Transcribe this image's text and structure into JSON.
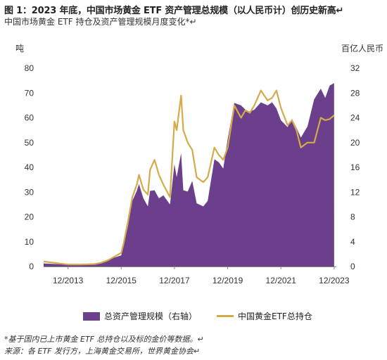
{
  "title": "图 1：2023 年底，中国市场黄金 ETF 资产管理总规模（以人民币计）创历史新高↵",
  "subtitle": "中国市场黄金 ETF 持仓及资产管理规模月度变化*↵",
  "footnote1": "*基于国内已上市黄金 ETF 总持仓以及标的金价等数据。↵",
  "footnote2": "来源：各 ETF 发行方，上海黄金交易所，世界黄金协会↵",
  "colors": {
    "area": "#6b3f8c",
    "line": "#d4aa4a",
    "axis": "#888888",
    "text": "#333333"
  },
  "chart_data": {
    "type": "area+line",
    "left_axis_unit": "吨",
    "right_axis_unit": "百亿人民币",
    "left_ylim": [
      0,
      80
    ],
    "right_ylim": [
      0,
      32
    ],
    "left_ticks": [
      "0",
      "10",
      "20",
      "30",
      "40",
      "50",
      "60",
      "70",
      "80"
    ],
    "right_ticks": [
      "0",
      "4",
      "8",
      "12",
      "16",
      "20",
      "24",
      "28",
      "32"
    ],
    "x_tick_labels": [
      "12/2013",
      "12/2015",
      "12/2017",
      "12/2019",
      "12/2021",
      "12/2023"
    ],
    "x_tick_dates": [
      "2013-12",
      "2015-12",
      "2017-12",
      "2019-12",
      "2021-12",
      "2023-12"
    ],
    "grid": false,
    "legend_position": "bottom",
    "series": [
      {
        "name": "总资产管理规模（右轴）",
        "axis": "right",
        "style": "area",
        "points": [
          [
            "2013-01",
            0.5
          ],
          [
            "2013-12",
            0.3
          ],
          [
            "2014-06",
            0.3
          ],
          [
            "2014-12",
            0.5
          ],
          [
            "2015-03",
            0.7
          ],
          [
            "2015-06",
            1.1
          ],
          [
            "2015-12",
            1.8
          ],
          [
            "2016-01",
            3.4
          ],
          [
            "2016-03",
            6.5
          ],
          [
            "2016-05",
            10.6
          ],
          [
            "2016-07",
            12.2
          ],
          [
            "2016-08",
            13.3
          ],
          [
            "2016-10",
            11.0
          ],
          [
            "2016-12",
            9.7
          ],
          [
            "2017-01",
            12.2
          ],
          [
            "2017-03",
            12.3
          ],
          [
            "2017-05",
            11.0
          ],
          [
            "2017-07",
            11.5
          ],
          [
            "2017-10",
            10.0
          ],
          [
            "2017-12",
            16.5
          ],
          [
            "2018-01",
            14.4
          ],
          [
            "2018-03",
            18.3
          ],
          [
            "2018-04",
            12.3
          ],
          [
            "2018-06",
            12.1
          ],
          [
            "2018-08",
            13.8
          ],
          [
            "2018-10",
            10.2
          ],
          [
            "2019-01",
            9.7
          ],
          [
            "2019-03",
            10.6
          ],
          [
            "2019-06",
            17.3
          ],
          [
            "2019-08",
            16.8
          ],
          [
            "2019-10",
            15.8
          ],
          [
            "2019-12",
            20.6
          ],
          [
            "2020-03",
            26.4
          ],
          [
            "2020-06",
            26.0
          ],
          [
            "2020-08",
            25.3
          ],
          [
            "2020-10",
            25.0
          ],
          [
            "2020-12",
            25.3
          ],
          [
            "2021-03",
            26.5
          ],
          [
            "2021-06",
            26.0
          ],
          [
            "2021-08",
            26.5
          ],
          [
            "2021-10",
            25.5
          ],
          [
            "2021-12",
            23.6
          ],
          [
            "2022-03",
            22.5
          ],
          [
            "2022-05",
            23.8
          ],
          [
            "2022-07",
            22.4
          ],
          [
            "2022-09",
            20.8
          ],
          [
            "2022-12",
            22.6
          ],
          [
            "2023-03",
            27.0
          ],
          [
            "2023-06",
            28.7
          ],
          [
            "2023-08",
            27.2
          ],
          [
            "2023-10",
            29.2
          ],
          [
            "2023-12",
            29.6
          ]
        ]
      },
      {
        "name": "中国黄金ETF总持仓",
        "axis": "left",
        "style": "line",
        "points": [
          [
            "2013-01",
            2.0
          ],
          [
            "2013-12",
            0.8
          ],
          [
            "2014-06",
            0.8
          ],
          [
            "2014-12",
            1.0
          ],
          [
            "2015-03",
            1.5
          ],
          [
            "2015-06",
            2.5
          ],
          [
            "2015-12",
            5.5
          ],
          [
            "2016-01",
            9.0
          ],
          [
            "2016-03",
            18.0
          ],
          [
            "2016-05",
            28.0
          ],
          [
            "2016-07",
            33.0
          ],
          [
            "2016-08",
            37.0
          ],
          [
            "2016-10",
            31.0
          ],
          [
            "2016-12",
            29.0
          ],
          [
            "2017-01",
            39.0
          ],
          [
            "2017-03",
            43.0
          ],
          [
            "2017-05",
            37.0
          ],
          [
            "2017-07",
            33.0
          ],
          [
            "2017-10",
            28.0
          ],
          [
            "2017-12",
            58.5
          ],
          [
            "2018-01",
            55.0
          ],
          [
            "2018-03",
            69.0
          ],
          [
            "2018-04",
            55.0
          ],
          [
            "2018-06",
            50.0
          ],
          [
            "2018-08",
            47.0
          ],
          [
            "2018-10",
            36.0
          ],
          [
            "2019-01",
            34.0
          ],
          [
            "2019-03",
            36.0
          ],
          [
            "2019-06",
            48.0
          ],
          [
            "2019-08",
            45.0
          ],
          [
            "2019-10",
            43.0
          ],
          [
            "2019-12",
            48.0
          ],
          [
            "2020-03",
            65.0
          ],
          [
            "2020-06",
            60.0
          ],
          [
            "2020-08",
            63.0
          ],
          [
            "2020-10",
            62.0
          ],
          [
            "2020-12",
            65.0
          ],
          [
            "2021-03",
            71.0
          ],
          [
            "2021-06",
            67.0
          ],
          [
            "2021-08",
            68.0
          ],
          [
            "2021-10",
            71.0
          ],
          [
            "2021-12",
            64.0
          ],
          [
            "2022-03",
            57.0
          ],
          [
            "2022-05",
            59.0
          ],
          [
            "2022-07",
            55.0
          ],
          [
            "2022-09",
            48.0
          ],
          [
            "2022-12",
            50.0
          ],
          [
            "2023-03",
            50.0
          ],
          [
            "2023-06",
            60.0
          ],
          [
            "2023-08",
            59.0
          ],
          [
            "2023-10",
            59.5
          ],
          [
            "2023-12",
            61.0
          ]
        ]
      }
    ]
  },
  "legend": {
    "area_label": "总资产管理规模（右轴）",
    "line_label": "中国黄金ETF总持仓"
  }
}
